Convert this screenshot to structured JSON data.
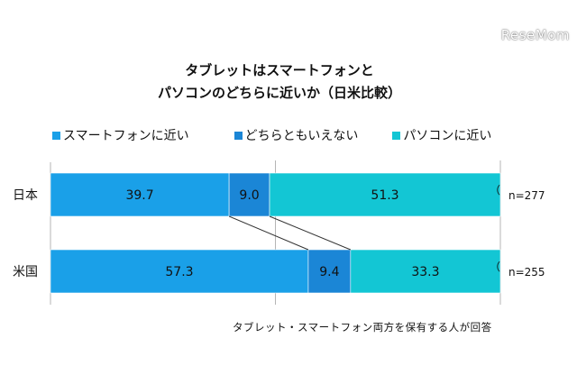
{
  "watermark": "ReseMom",
  "title_line1": "タブレットはスマートフォンと",
  "title_line2": "パソコンのどちらに近いか（日米比較）",
  "footnote": "タブレット・スマートフォン両方を保有する人が回答",
  "colors": {
    "smartphone": "#1aa0e8",
    "neither": "#1b86d6",
    "pc": "#13c6d4"
  },
  "chart_data": {
    "type": "bar",
    "stacked": true,
    "orientation": "horizontal",
    "percent": true,
    "xlim": [
      0,
      100
    ],
    "categories": [
      "日本",
      "米国"
    ],
    "sample_sizes": [
      "n=277",
      "n=255"
    ],
    "series": [
      {
        "name": "スマートフォンに近い",
        "values": [
          39.7,
          57.3
        ]
      },
      {
        "name": "どちらともいえない",
        "values": [
          9.0,
          9.4
        ]
      },
      {
        "name": "パソコンに近い",
        "values": [
          51.3,
          33.3
        ]
      }
    ],
    "legend_position": "top",
    "grid": "vertical at 50%"
  }
}
